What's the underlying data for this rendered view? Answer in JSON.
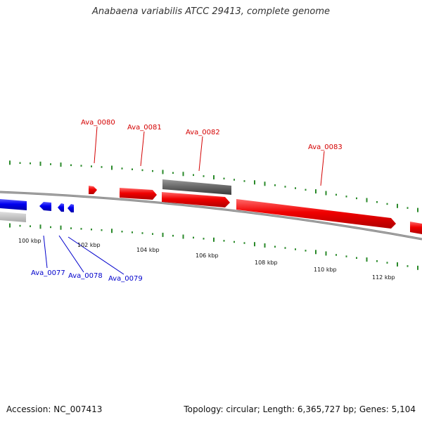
{
  "title": "Anabaena variabilis ATCC 29413, complete genome",
  "footer": {
    "accession": "Accession: NC_007413",
    "summary": "Topology: circular; Length: 6,365,727 bp; Genes: 5,104"
  },
  "ticks": [
    "100 kbp",
    "102 kbp",
    "104 kbp",
    "106 kbp",
    "108 kbp",
    "110 kbp",
    "112 kbp"
  ],
  "genes_forward": [
    {
      "label": "Ava_0080",
      "color": "#d40000"
    },
    {
      "label": "Ava_0081",
      "color": "#d40000"
    },
    {
      "label": "Ava_0082",
      "color": "#d40000"
    },
    {
      "label": "Ava_0083",
      "color": "#d40000"
    }
  ],
  "genes_reverse": [
    {
      "label": "Ava_0077",
      "color": "#0000cc"
    },
    {
      "label": "Ava_0078",
      "color": "#0000cc"
    },
    {
      "label": "Ava_0079",
      "color": "#0000cc"
    }
  ],
  "colors": {
    "forward": "#e60000",
    "reverse": "#0000e6",
    "other": "#666666",
    "backbone": "#808080",
    "gc_skew": "#2a8a2a"
  }
}
